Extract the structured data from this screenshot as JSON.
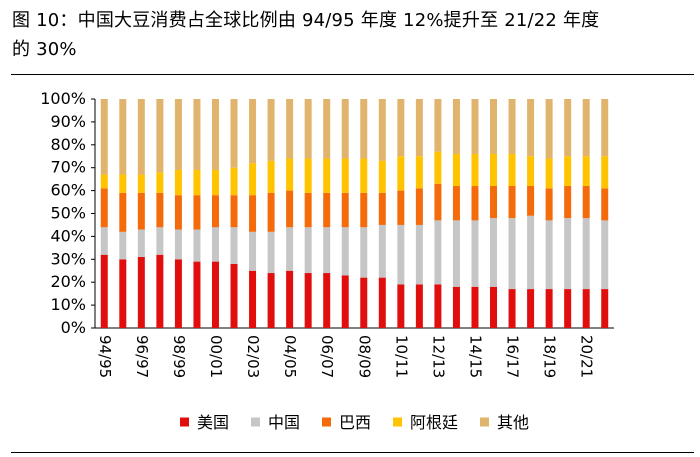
{
  "figure": {
    "title_line1": "图 10：中国大豆消费占全球比例由 94/95 年度 12%提升至 21/22 年度",
    "title_line2": "的 30%"
  },
  "colors": {
    "美国": "#e10e0e",
    "中国": "#c6c6c6",
    "巴西": "#f46b0c",
    "阿根廷": "#ffc300",
    "其他": "#e1b46e"
  },
  "chart_data": {
    "type": "bar",
    "stacked": true,
    "title": "",
    "xlabel": "",
    "ylabel": "",
    "ylim": [
      0,
      100
    ],
    "y_ticks": [
      "0%",
      "10%",
      "20%",
      "30%",
      "40%",
      "50%",
      "60%",
      "70%",
      "80%",
      "90%",
      "100%"
    ],
    "x_tick_labels": [
      "94/95",
      "96/97",
      "98/99",
      "00/01",
      "02/03",
      "04/05",
      "06/07",
      "08/09",
      "10/11",
      "12/13",
      "14/15",
      "16/17",
      "18/19",
      "20/21"
    ],
    "categories": [
      "94/95",
      "95/96",
      "96/97",
      "97/98",
      "98/99",
      "99/00",
      "00/01",
      "01/02",
      "02/03",
      "03/04",
      "04/05",
      "05/06",
      "06/07",
      "07/08",
      "08/09",
      "09/10",
      "10/11",
      "11/12",
      "12/13",
      "13/14",
      "14/15",
      "15/16",
      "16/17",
      "17/18",
      "18/19",
      "19/20",
      "20/21",
      "21/22"
    ],
    "legend": [
      "美国",
      "中国",
      "巴西",
      "阿根廷",
      "其他"
    ],
    "legend_position": "bottom",
    "series": [
      {
        "name": "美国",
        "values": [
          32,
          30,
          31,
          32,
          30,
          29,
          29,
          28,
          25,
          24,
          25,
          24,
          24,
          23,
          22,
          22,
          19,
          19,
          19,
          18,
          18,
          18,
          17,
          17,
          17,
          17,
          17,
          17
        ]
      },
      {
        "name": "中国",
        "values": [
          12,
          12,
          12,
          12,
          13,
          14,
          15,
          16,
          17,
          18,
          19,
          20,
          20,
          21,
          22,
          23,
          26,
          26,
          28,
          29,
          29,
          30,
          31,
          32,
          30,
          31,
          31,
          30
        ]
      },
      {
        "name": "巴西",
        "values": [
          17,
          17,
          16,
          15,
          15,
          15,
          14,
          14,
          16,
          17,
          16,
          15,
          15,
          15,
          15,
          14,
          15,
          16,
          16,
          15,
          15,
          14,
          14,
          13,
          14,
          14,
          14,
          14
        ]
      },
      {
        "name": "阿根廷",
        "values": [
          6,
          8,
          8,
          9,
          11,
          11,
          11,
          12,
          14,
          14,
          14,
          15,
          15,
          15,
          15,
          14,
          15,
          14,
          14,
          14,
          14,
          14,
          14,
          13,
          13,
          13,
          13,
          14
        ]
      },
      {
        "name": "其他",
        "values": [
          33,
          33,
          33,
          32,
          31,
          31,
          31,
          30,
          28,
          27,
          26,
          26,
          26,
          26,
          26,
          27,
          25,
          25,
          23,
          24,
          24,
          24,
          24,
          25,
          26,
          25,
          25,
          25
        ]
      }
    ]
  }
}
